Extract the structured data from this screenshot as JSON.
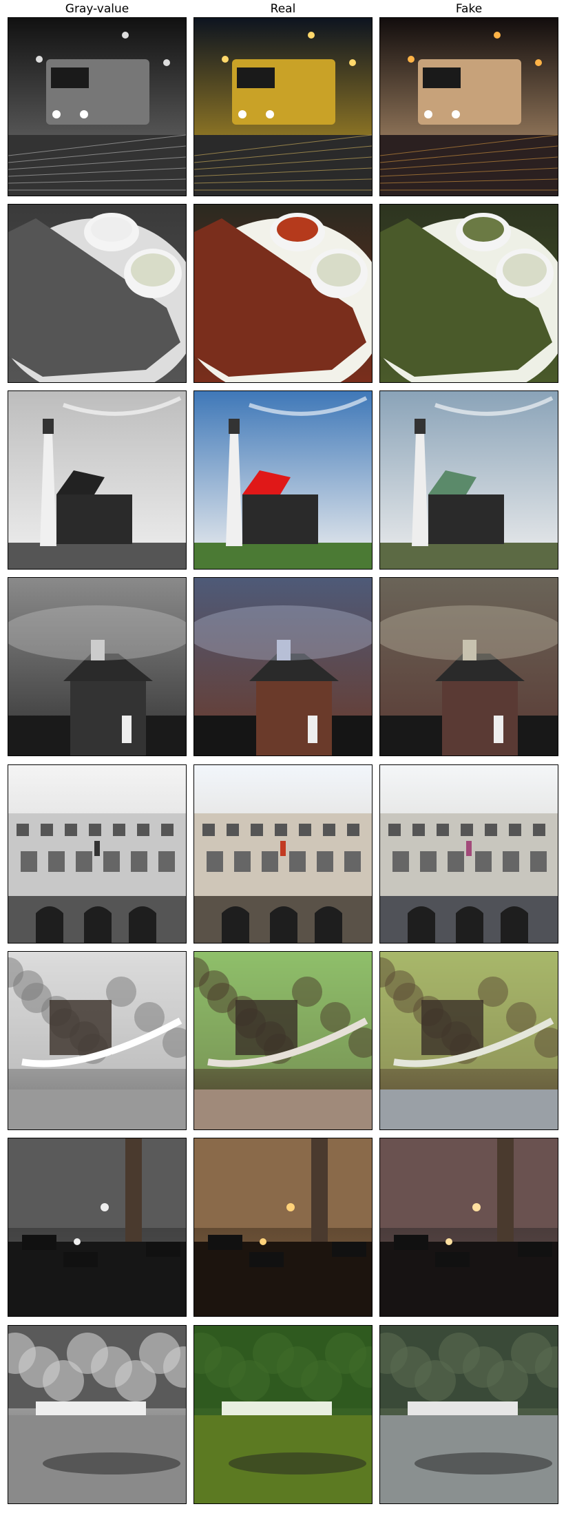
{
  "columns": [
    "Gray-value",
    "Real",
    "Fake"
  ],
  "rows": [
    {
      "subject": "locomotive-night"
    },
    {
      "subject": "ribs-plate"
    },
    {
      "subject": "lighthouse"
    },
    {
      "subject": "church-stormy-sky"
    },
    {
      "subject": "palace-facade"
    },
    {
      "subject": "forest-fallen-tree"
    },
    {
      "subject": "restaurant-interior"
    },
    {
      "subject": "park-pond"
    }
  ]
}
